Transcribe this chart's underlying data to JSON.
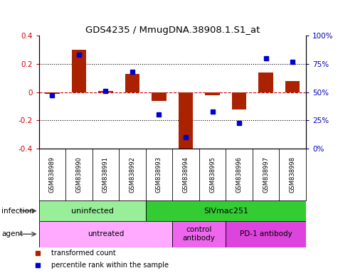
{
  "title": "GDS4235 / MmugDNA.38908.1.S1_at",
  "samples": [
    "GSM838989",
    "GSM838990",
    "GSM838991",
    "GSM838992",
    "GSM838993",
    "GSM838994",
    "GSM838995",
    "GSM838996",
    "GSM838997",
    "GSM838998"
  ],
  "transformed_counts": [
    -0.01,
    0.3,
    0.01,
    0.13,
    -0.06,
    -0.4,
    -0.02,
    -0.12,
    0.14,
    0.08
  ],
  "percentile_ranks": [
    47,
    83,
    51,
    68,
    30,
    10,
    33,
    23,
    80,
    77
  ],
  "bar_color": "#aa2200",
  "dot_color": "#0000cc",
  "ylim": [
    -0.4,
    0.4
  ],
  "y2lim": [
    0,
    100
  ],
  "yticks": [
    -0.4,
    -0.2,
    0.0,
    0.2,
    0.4
  ],
  "y2ticks": [
    0,
    25,
    50,
    75,
    100
  ],
  "y2ticklabels": [
    "0%",
    "25%",
    "50%",
    "75%",
    "100%"
  ],
  "hline_dotted": [
    0.2,
    -0.2
  ],
  "hline_dashed": [
    0.0
  ],
  "infection_labels": [
    {
      "text": "uninfected",
      "start": 0,
      "end": 3,
      "color": "#99ee99"
    },
    {
      "text": "SIVmac251",
      "start": 4,
      "end": 9,
      "color": "#33cc33"
    }
  ],
  "agent_labels": [
    {
      "text": "untreated",
      "start": 0,
      "end": 4,
      "color": "#ffaaff"
    },
    {
      "text": "control\nantibody",
      "start": 5,
      "end": 6,
      "color": "#ee66ee"
    },
    {
      "text": "PD-1 antibody",
      "start": 7,
      "end": 9,
      "color": "#dd44dd"
    }
  ],
  "legend_items": [
    {
      "label": "transformed count",
      "color": "#aa2200"
    },
    {
      "label": "percentile rank within the sample",
      "color": "#0000cc"
    }
  ],
  "infection_row_label": "infection",
  "agent_row_label": "agent",
  "sample_cell_bg": "#cccccc",
  "bg_color": "#ffffff"
}
